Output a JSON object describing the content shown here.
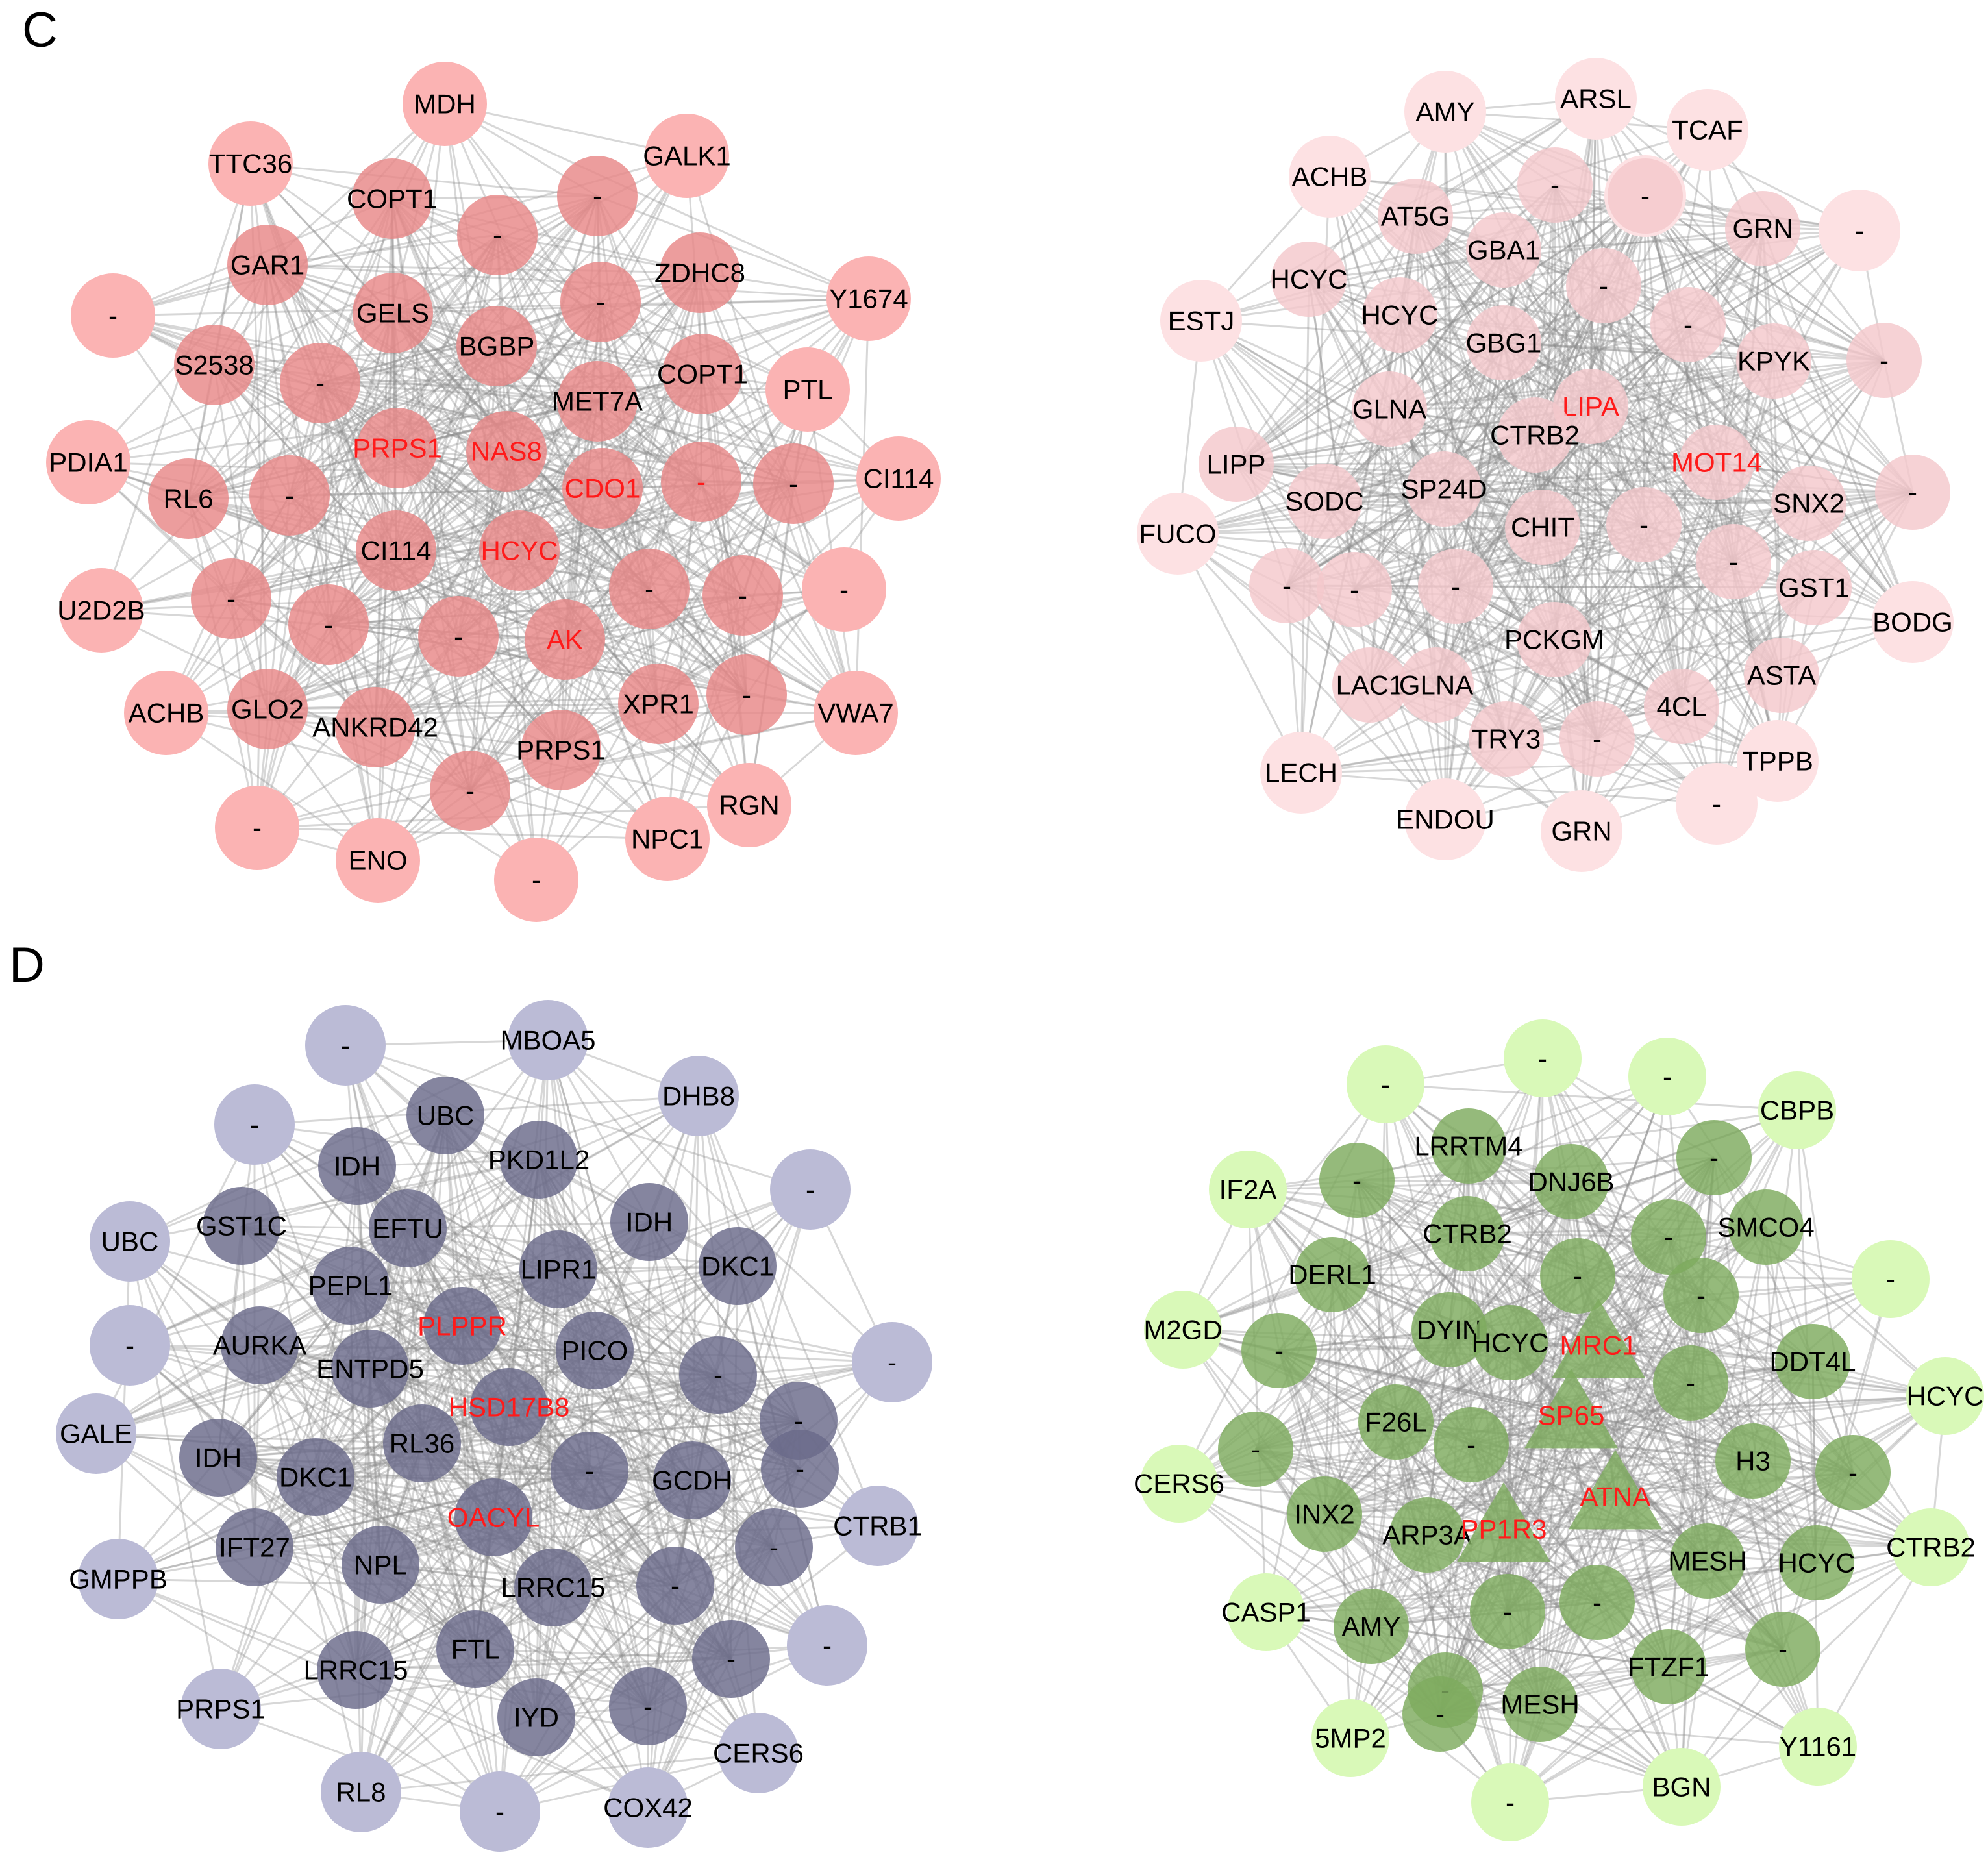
{
  "panels": [
    {
      "letter": "C"
    },
    {
      "letter": "D"
    }
  ],
  "networks": [
    {
      "id": "C-red",
      "colors": {
        "outer": "#fbb3b3",
        "inner": "#e88787",
        "edge": "#8c8c8c"
      },
      "nodes": [
        {
          "label": "MDH",
          "ring": "outer"
        },
        {
          "label": "GALK1",
          "ring": "outer"
        },
        {
          "label": "Y1674",
          "ring": "outer"
        },
        {
          "label": "PTL",
          "ring": "outer"
        },
        {
          "label": "CI114",
          "ring": "outer"
        },
        {
          "label": "-",
          "ring": "outer"
        },
        {
          "label": "VWA7",
          "ring": "outer"
        },
        {
          "label": "RGN",
          "ring": "outer"
        },
        {
          "label": "NPC1",
          "ring": "outer"
        },
        {
          "label": "-",
          "ring": "outer"
        },
        {
          "label": "ENO",
          "ring": "outer"
        },
        {
          "label": "-",
          "ring": "outer"
        },
        {
          "label": "ACHB",
          "ring": "outer"
        },
        {
          "label": "U2D2B",
          "ring": "outer"
        },
        {
          "label": "PDIA1",
          "ring": "outer"
        },
        {
          "label": "-",
          "ring": "outer"
        },
        {
          "label": "TTC36",
          "ring": "outer"
        },
        {
          "label": "COPT1",
          "ring": "inner"
        },
        {
          "label": "-",
          "ring": "inner"
        },
        {
          "label": "-",
          "ring": "inner"
        },
        {
          "label": "ZDHC8",
          "ring": "inner"
        },
        {
          "label": "GAR1",
          "ring": "inner"
        },
        {
          "label": "GELS",
          "ring": "inner"
        },
        {
          "label": "BGBP",
          "ring": "inner"
        },
        {
          "label": "-",
          "ring": "inner"
        },
        {
          "label": "S2538",
          "ring": "inner"
        },
        {
          "label": "-",
          "ring": "inner"
        },
        {
          "label": "MET7A",
          "ring": "inner"
        },
        {
          "label": "COPT1",
          "ring": "inner"
        },
        {
          "label": "PRPS1",
          "ring": "inner",
          "highlight": true
        },
        {
          "label": "NAS8",
          "ring": "inner",
          "highlight": true
        },
        {
          "label": "CDO1",
          "ring": "inner",
          "highlight": true
        },
        {
          "label": "-",
          "ring": "inner",
          "highlight": true
        },
        {
          "label": "-",
          "ring": "inner"
        },
        {
          "label": "RL6",
          "ring": "inner"
        },
        {
          "label": "-",
          "ring": "inner"
        },
        {
          "label": "CI114",
          "ring": "inner"
        },
        {
          "label": "HCYC",
          "ring": "inner",
          "highlight": true
        },
        {
          "label": "-",
          "ring": "inner"
        },
        {
          "label": "-",
          "ring": "inner"
        },
        {
          "label": "-",
          "ring": "inner"
        },
        {
          "label": "-",
          "ring": "inner"
        },
        {
          "label": "-",
          "ring": "inner"
        },
        {
          "label": "AK",
          "ring": "inner",
          "highlight": true
        },
        {
          "label": "GLO2",
          "ring": "inner"
        },
        {
          "label": "ANKRD42",
          "ring": "inner"
        },
        {
          "label": "XPR1",
          "ring": "inner"
        },
        {
          "label": "-",
          "ring": "inner"
        },
        {
          "label": "PRPS1",
          "ring": "inner"
        },
        {
          "label": "-",
          "ring": "inner"
        }
      ]
    },
    {
      "id": "C-pink",
      "colors": {
        "outer": "#fde1e3",
        "inner": "#f4c8cc",
        "edge": "#8c8c8c"
      },
      "nodes": [
        {
          "label": "AMY",
          "ring": "outer"
        },
        {
          "label": "ARSL",
          "ring": "outer"
        },
        {
          "label": "TCAF",
          "ring": "outer"
        },
        {
          "label": "-",
          "ring": "outer"
        },
        {
          "label": "-",
          "ring": "outer"
        },
        {
          "label": "BODG",
          "ring": "outer"
        },
        {
          "label": "TPPB",
          "ring": "outer"
        },
        {
          "label": "-",
          "ring": "outer"
        },
        {
          "label": "GRN",
          "ring": "outer"
        },
        {
          "label": "ENDOU",
          "ring": "outer"
        },
        {
          "label": "LECH",
          "ring": "outer"
        },
        {
          "label": "FUCO",
          "ring": "outer"
        },
        {
          "label": "ESTJ",
          "ring": "outer"
        },
        {
          "label": "ACHB",
          "ring": "outer"
        },
        {
          "label": "AT5G",
          "ring": "inner"
        },
        {
          "label": "-",
          "ring": "inner"
        },
        {
          "label": "-",
          "ring": "inner"
        },
        {
          "label": "GRN",
          "ring": "inner"
        },
        {
          "label": "HCYC",
          "ring": "inner"
        },
        {
          "label": "GBA1",
          "ring": "inner"
        },
        {
          "label": "-",
          "ring": "inner"
        },
        {
          "label": "HCYC",
          "ring": "inner"
        },
        {
          "label": "GBG1",
          "ring": "inner"
        },
        {
          "label": "-",
          "ring": "inner"
        },
        {
          "label": "KPYK",
          "ring": "inner"
        },
        {
          "label": "-",
          "ring": "inner"
        },
        {
          "label": "GLNA",
          "ring": "inner"
        },
        {
          "label": "LIPA",
          "ring": "inner",
          "highlight": true
        },
        {
          "label": "LIPP",
          "ring": "inner"
        },
        {
          "label": "CTRB2",
          "ring": "inner"
        },
        {
          "label": "MOT14",
          "ring": "inner",
          "highlight": true
        },
        {
          "label": "SODC",
          "ring": "inner"
        },
        {
          "label": "SP24D",
          "ring": "inner"
        },
        {
          "label": "CHIT",
          "ring": "inner"
        },
        {
          "label": "-",
          "ring": "inner"
        },
        {
          "label": "SNX2",
          "ring": "inner"
        },
        {
          "label": "-",
          "ring": "inner"
        },
        {
          "label": "-",
          "ring": "inner"
        },
        {
          "label": "-",
          "ring": "inner"
        },
        {
          "label": "-",
          "ring": "inner"
        },
        {
          "label": "-",
          "ring": "inner"
        },
        {
          "label": "GST1",
          "ring": "inner"
        },
        {
          "label": "PCKGM",
          "ring": "inner"
        },
        {
          "label": "LAC1",
          "ring": "inner"
        },
        {
          "label": "GLNA",
          "ring": "inner"
        },
        {
          "label": "ASTA",
          "ring": "inner"
        },
        {
          "label": "4CL",
          "ring": "inner"
        },
        {
          "label": "TRY3",
          "ring": "inner"
        },
        {
          "label": "-",
          "ring": "inner"
        }
      ]
    },
    {
      "id": "D-purple",
      "colors": {
        "outer": "#bbbbd6",
        "inner": "#6a6a8a",
        "edge": "#8c8c8c"
      },
      "nodes": [
        {
          "label": "-",
          "ring": "outer"
        },
        {
          "label": "MBOA5",
          "ring": "outer"
        },
        {
          "label": "DHB8",
          "ring": "outer"
        },
        {
          "label": "-",
          "ring": "outer"
        },
        {
          "label": "-",
          "ring": "outer"
        },
        {
          "label": "CTRB1",
          "ring": "outer"
        },
        {
          "label": "-",
          "ring": "outer"
        },
        {
          "label": "CERS6",
          "ring": "outer"
        },
        {
          "label": "COX42",
          "ring": "outer"
        },
        {
          "label": "-",
          "ring": "outer"
        },
        {
          "label": "RL8",
          "ring": "outer"
        },
        {
          "label": "PRPS1",
          "ring": "outer"
        },
        {
          "label": "GMPPB",
          "ring": "outer"
        },
        {
          "label": "GALE",
          "ring": "outer"
        },
        {
          "label": "-",
          "ring": "outer"
        },
        {
          "label": "UBC",
          "ring": "outer"
        },
        {
          "label": "-",
          "ring": "outer"
        },
        {
          "label": "UBC",
          "ring": "inner"
        },
        {
          "label": "IDH",
          "ring": "inner"
        },
        {
          "label": "PKD1L2",
          "ring": "inner"
        },
        {
          "label": "GST1C",
          "ring": "inner"
        },
        {
          "label": "EFTU",
          "ring": "inner"
        },
        {
          "label": "IDH",
          "ring": "inner"
        },
        {
          "label": "DKC1",
          "ring": "inner"
        },
        {
          "label": "PEPL1",
          "ring": "inner"
        },
        {
          "label": "LIPR1",
          "ring": "inner"
        },
        {
          "label": "PLPPR",
          "ring": "inner",
          "highlight": true
        },
        {
          "label": "AURKA",
          "ring": "inner"
        },
        {
          "label": "PICO",
          "ring": "inner"
        },
        {
          "label": "-",
          "ring": "inner"
        },
        {
          "label": "ENTPD5",
          "ring": "inner"
        },
        {
          "label": "HSD17B8",
          "ring": "inner",
          "highlight": true
        },
        {
          "label": "-",
          "ring": "inner"
        },
        {
          "label": "IDH",
          "ring": "inner"
        },
        {
          "label": "DKC1",
          "ring": "inner"
        },
        {
          "label": "RL36",
          "ring": "inner"
        },
        {
          "label": "-",
          "ring": "inner"
        },
        {
          "label": "GCDH",
          "ring": "inner"
        },
        {
          "label": "-",
          "ring": "inner"
        },
        {
          "label": "OACYL",
          "ring": "inner",
          "highlight": true
        },
        {
          "label": "IFT27",
          "ring": "inner"
        },
        {
          "label": "NPL",
          "ring": "inner"
        },
        {
          "label": "LRRC15",
          "ring": "inner"
        },
        {
          "label": "-",
          "ring": "inner"
        },
        {
          "label": "-",
          "ring": "inner"
        },
        {
          "label": "FTL",
          "ring": "inner"
        },
        {
          "label": "LRRC15",
          "ring": "inner"
        },
        {
          "label": "-",
          "ring": "inner"
        },
        {
          "label": "IYD",
          "ring": "inner"
        },
        {
          "label": "-",
          "ring": "inner"
        }
      ]
    },
    {
      "id": "D-green",
      "colors": {
        "outer": "#d9f9b8",
        "inner": "#7eab5e",
        "edge": "#8c8c8c"
      },
      "nodes": [
        {
          "label": "-",
          "ring": "outer"
        },
        {
          "label": "-",
          "ring": "outer"
        },
        {
          "label": "-",
          "ring": "outer"
        },
        {
          "label": "CBPB",
          "ring": "outer"
        },
        {
          "label": "-",
          "ring": "outer"
        },
        {
          "label": "HCYC",
          "ring": "outer"
        },
        {
          "label": "CTRB2",
          "ring": "outer"
        },
        {
          "label": "Y1161",
          "ring": "outer"
        },
        {
          "label": "BGN",
          "ring": "outer"
        },
        {
          "label": "-",
          "ring": "outer"
        },
        {
          "label": "5MP2",
          "ring": "outer"
        },
        {
          "label": "CASP1",
          "ring": "outer"
        },
        {
          "label": "CERS6",
          "ring": "outer"
        },
        {
          "label": "M2GD",
          "ring": "outer"
        },
        {
          "label": "IF2A",
          "ring": "outer"
        },
        {
          "label": "LRRTM4",
          "ring": "inner"
        },
        {
          "label": "-",
          "ring": "inner"
        },
        {
          "label": "-",
          "ring": "inner"
        },
        {
          "label": "DNJ6B",
          "ring": "inner"
        },
        {
          "label": "SMCO4",
          "ring": "inner"
        },
        {
          "label": "CTRB2",
          "ring": "inner"
        },
        {
          "label": "DERL1",
          "ring": "inner"
        },
        {
          "label": "-",
          "ring": "inner"
        },
        {
          "label": "-",
          "ring": "inner"
        },
        {
          "label": "DYIN",
          "ring": "inner"
        },
        {
          "label": "HCYC",
          "ring": "inner"
        },
        {
          "label": "MRC1",
          "ring": "inner",
          "highlight": true,
          "shape": "triangle"
        },
        {
          "label": "-",
          "ring": "inner"
        },
        {
          "label": "DDT4L",
          "ring": "inner"
        },
        {
          "label": "-",
          "ring": "inner"
        },
        {
          "label": "F26L",
          "ring": "inner"
        },
        {
          "label": "-",
          "ring": "inner"
        },
        {
          "label": "SP65",
          "ring": "inner",
          "highlight": true,
          "shape": "triangle"
        },
        {
          "label": "-",
          "ring": "inner"
        },
        {
          "label": "H3",
          "ring": "inner"
        },
        {
          "label": "-",
          "ring": "inner"
        },
        {
          "label": "-",
          "ring": "inner"
        },
        {
          "label": "INX2",
          "ring": "inner"
        },
        {
          "label": "ARP3A",
          "ring": "inner"
        },
        {
          "label": "PP1R3",
          "ring": "inner",
          "highlight": true,
          "shape": "triangle"
        },
        {
          "label": "ATNA",
          "ring": "inner",
          "highlight": true,
          "shape": "triangle"
        },
        {
          "label": "MESH",
          "ring": "inner"
        },
        {
          "label": "HCYC",
          "ring": "inner"
        },
        {
          "label": "AMY",
          "ring": "inner"
        },
        {
          "label": "-",
          "ring": "inner"
        },
        {
          "label": "-",
          "ring": "inner"
        },
        {
          "label": "-",
          "ring": "inner"
        },
        {
          "label": "FTZF1",
          "ring": "inner"
        },
        {
          "label": "-",
          "ring": "inner"
        },
        {
          "label": "MESH",
          "ring": "inner"
        },
        {
          "label": "-",
          "ring": "inner"
        }
      ]
    }
  ]
}
